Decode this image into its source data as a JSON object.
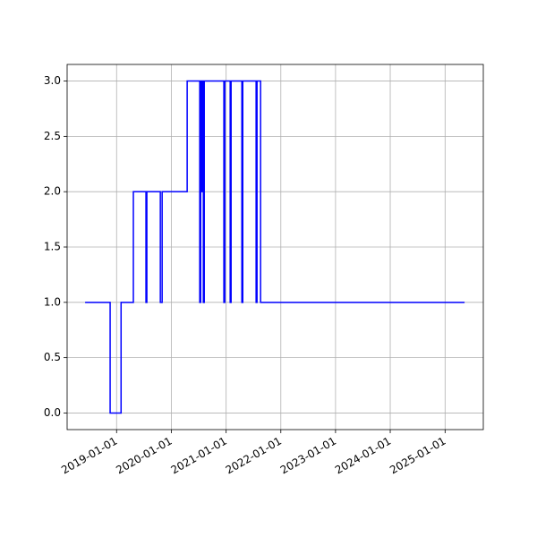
{
  "chart_data": {
    "type": "line",
    "drawstyle": "steps-post",
    "grid": true,
    "x": [
      "2018-06-05",
      "2018-11-19",
      "2019-01-31",
      "2019-04-23",
      "2019-07-16",
      "2019-07-22",
      "2019-10-20",
      "2019-11-01",
      "2020-04-16",
      "2020-07-09",
      "2020-07-15",
      "2020-07-21",
      "2020-07-27",
      "2020-08-02",
      "2020-08-08",
      "2020-12-17",
      "2020-12-23",
      "2021-01-28",
      "2021-02-03",
      "2021-04-16",
      "2021-04-22",
      "2021-07-20",
      "2021-07-26",
      "2021-08-19",
      "2025-05-11"
    ],
    "series": [
      {
        "color": "#0000ff",
        "values": [
          1,
          0,
          1,
          2,
          1,
          2,
          1,
          2,
          3,
          1,
          3,
          2,
          3,
          1,
          3,
          1,
          3,
          1,
          3,
          1,
          3,
          1,
          3,
          1,
          1
        ]
      }
    ],
    "xlim": [
      "2018-02-05",
      "2025-09-13"
    ],
    "xticks": [
      "2019-01-01",
      "2020-01-01",
      "2021-01-01",
      "2022-01-01",
      "2023-01-01",
      "2024-01-01",
      "2025-01-01"
    ],
    "ylim": [
      -0.15,
      3.15
    ],
    "yticks": [
      {
        "value": 0,
        "label": "0.0"
      },
      0.5,
      {
        "value": 1,
        "label": "1.0"
      },
      1.5,
      {
        "value": 2,
        "label": "2.0"
      },
      2.5,
      {
        "value": 3,
        "label": "3.0"
      }
    ]
  }
}
